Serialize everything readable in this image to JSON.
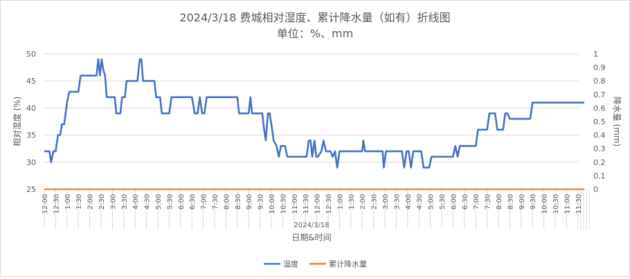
{
  "chart_data": {
    "type": "line",
    "title": "2024/3/18 费城相对湿度、累计降水量（如有）折线图",
    "subtitle": "单位：%、mm",
    "xlabel": "日期&时间",
    "x_group_label": "2024/3/18",
    "ylabel_left": "相对湿度 (%)",
    "ylabel_right": "降水量 (mm)",
    "ylim_left": [
      25,
      50
    ],
    "ylim_right": [
      0,
      1
    ],
    "y_ticks_left": [
      "25",
      "30",
      "35",
      "40",
      "45",
      "50"
    ],
    "y_ticks_right": [
      "0",
      "0.1",
      "0.2",
      "0.3",
      "0.4",
      "0.5",
      "0.6",
      "0.7",
      "0.8",
      "0.9",
      "1"
    ],
    "x_tick_labels": [
      "12:00",
      "12:30",
      "1:00",
      "1:30",
      "2:00",
      "2:30",
      "3:00",
      "3:30",
      "4:00",
      "4:30",
      "5:00",
      "5:30",
      "6:00",
      "6:30",
      "7:00",
      "7:30",
      "8:00",
      "8:30",
      "9:00",
      "9:30",
      "10:00",
      "10:30",
      "11:00",
      "11:30",
      "12:00",
      "12:30",
      "1:00",
      "1:30",
      "2:00",
      "2:30",
      "3:00",
      "3:30",
      "4:00",
      "4:30",
      "5:00",
      "5:30",
      "6:00",
      "6:30",
      "7:00",
      "7:30",
      "8:00",
      "8:30",
      "9:00",
      "9:30",
      "10:00",
      "10:30",
      "11:00",
      "11:30"
    ],
    "grid": true,
    "legend_position": "bottom",
    "series": [
      {
        "name": "湿度",
        "axis": "left",
        "color": "#4472c4",
        "points": [
          [
            0.0,
            32
          ],
          [
            0.25,
            32
          ],
          [
            0.45,
            32
          ],
          [
            0.6,
            30
          ],
          [
            0.8,
            32
          ],
          [
            1.0,
            32
          ],
          [
            1.2,
            35
          ],
          [
            1.4,
            35
          ],
          [
            1.55,
            37
          ],
          [
            1.75,
            37
          ],
          [
            2.0,
            41
          ],
          [
            2.2,
            43
          ],
          [
            2.6,
            43
          ],
          [
            3.0,
            43
          ],
          [
            3.2,
            46
          ],
          [
            3.6,
            46
          ],
          [
            4.2,
            46
          ],
          [
            4.6,
            46
          ],
          [
            4.75,
            49
          ],
          [
            4.9,
            46
          ],
          [
            5.05,
            49
          ],
          [
            5.2,
            47
          ],
          [
            5.35,
            46
          ],
          [
            5.5,
            42
          ],
          [
            6.0,
            42
          ],
          [
            6.2,
            42
          ],
          [
            6.35,
            39
          ],
          [
            6.7,
            39
          ],
          [
            6.85,
            42
          ],
          [
            7.1,
            42
          ],
          [
            7.25,
            45
          ],
          [
            7.8,
            45
          ],
          [
            8.2,
            45
          ],
          [
            8.4,
            49
          ],
          [
            8.55,
            49
          ],
          [
            8.7,
            45
          ],
          [
            9.3,
            45
          ],
          [
            9.7,
            45
          ],
          [
            9.85,
            42
          ],
          [
            10.2,
            42
          ],
          [
            10.35,
            39
          ],
          [
            11.0,
            39
          ],
          [
            11.2,
            42
          ],
          [
            12.8,
            42
          ],
          [
            13.0,
            42
          ],
          [
            13.25,
            39
          ],
          [
            13.5,
            39
          ],
          [
            13.7,
            42
          ],
          [
            13.9,
            39
          ],
          [
            14.1,
            39
          ],
          [
            14.3,
            42
          ],
          [
            15.0,
            42
          ],
          [
            16.8,
            42
          ],
          [
            17.0,
            42
          ],
          [
            17.15,
            39
          ],
          [
            18.0,
            39
          ],
          [
            18.15,
            42
          ],
          [
            18.3,
            39
          ],
          [
            19.2,
            39
          ],
          [
            19.3,
            37
          ],
          [
            19.5,
            34
          ],
          [
            19.7,
            39
          ],
          [
            19.85,
            39
          ],
          [
            20.0,
            37
          ],
          [
            20.2,
            34
          ],
          [
            20.45,
            33
          ],
          [
            20.65,
            31
          ],
          [
            20.85,
            33
          ],
          [
            21.2,
            33
          ],
          [
            21.4,
            31
          ],
          [
            22.8,
            31
          ],
          [
            23.1,
            31
          ],
          [
            23.3,
            34
          ],
          [
            23.45,
            34
          ],
          [
            23.6,
            31
          ],
          [
            23.8,
            34
          ],
          [
            23.95,
            31
          ],
          [
            24.1,
            31
          ],
          [
            24.4,
            32
          ],
          [
            24.6,
            34
          ],
          [
            24.8,
            32
          ],
          [
            25.2,
            32
          ],
          [
            25.4,
            31
          ],
          [
            25.6,
            32
          ],
          [
            25.8,
            29
          ],
          [
            26.0,
            32
          ],
          [
            27.5,
            32
          ],
          [
            28.0,
            32
          ],
          [
            28.1,
            34
          ],
          [
            28.25,
            32
          ],
          [
            29.8,
            32
          ],
          [
            29.9,
            29
          ],
          [
            30.1,
            32
          ],
          [
            31.2,
            32
          ],
          [
            31.5,
            32
          ],
          [
            31.7,
            29
          ],
          [
            31.9,
            32
          ],
          [
            32.1,
            32
          ],
          [
            32.3,
            29
          ],
          [
            32.5,
            32
          ],
          [
            33.2,
            32
          ],
          [
            33.4,
            29
          ],
          [
            33.9,
            29
          ],
          [
            34.1,
            31
          ],
          [
            35.8,
            31
          ],
          [
            36.0,
            31
          ],
          [
            36.2,
            33
          ],
          [
            36.4,
            31
          ],
          [
            36.6,
            33
          ],
          [
            37.4,
            33
          ],
          [
            38.0,
            33
          ],
          [
            38.2,
            36
          ],
          [
            39.0,
            36
          ],
          [
            39.2,
            39
          ],
          [
            39.7,
            39
          ],
          [
            39.9,
            36
          ],
          [
            40.4,
            36
          ],
          [
            40.6,
            39
          ],
          [
            40.8,
            39
          ],
          [
            41.0,
            38
          ],
          [
            41.3,
            38
          ],
          [
            42.5,
            38
          ],
          [
            42.8,
            38
          ],
          [
            43.0,
            41
          ],
          [
            46.0,
            41
          ],
          [
            47.55,
            41
          ]
        ]
      },
      {
        "name": "累计降水量",
        "axis": "right",
        "color": "#ed7d31",
        "points": [
          [
            0.0,
            0
          ],
          [
            47.55,
            0
          ]
        ]
      }
    ]
  }
}
